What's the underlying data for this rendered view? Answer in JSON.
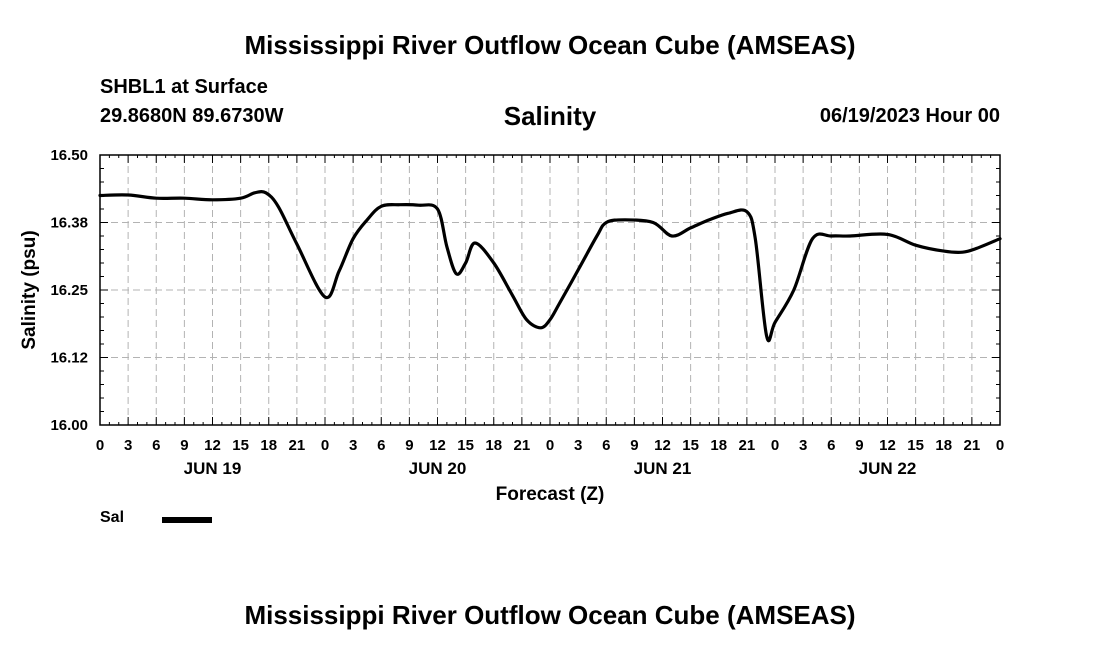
{
  "header": {
    "title": "Mississippi River Outflow Ocean Cube (AMSEAS)",
    "station": "SHBL1 at Surface",
    "coordinates": "29.8680N  89.6730W",
    "variable": "Salinity",
    "date_time": "06/19/2023 Hour 00"
  },
  "legend": {
    "label": "Sal"
  },
  "footer": {
    "title": "Mississippi River Outflow Ocean Cube (AMSEAS)"
  },
  "chart_data": {
    "type": "line",
    "title": "Salinity",
    "xlabel": "Forecast (Z)",
    "ylabel": "Salinity (psu)",
    "ylim": [
      16.0,
      16.5
    ],
    "xlim": [
      0,
      96
    ],
    "grid": true,
    "y_ticks": [
      "16.00",
      "16.12",
      "16.25",
      "16.38",
      "16.50"
    ],
    "x_tick_labels": [
      "0",
      "3",
      "6",
      "9",
      "12",
      "15",
      "18",
      "21",
      "0",
      "3",
      "6",
      "9",
      "12",
      "15",
      "18",
      "21",
      "0",
      "3",
      "6",
      "9",
      "12",
      "15",
      "18",
      "21",
      "0",
      "3",
      "6",
      "9",
      "12",
      "15",
      "18",
      "21",
      "0"
    ],
    "date_labels": [
      {
        "label": "JUN 19",
        "hour": 12
      },
      {
        "label": "JUN 20",
        "hour": 36
      },
      {
        "label": "JUN 21",
        "hour": 60
      },
      {
        "label": "JUN 22",
        "hour": 84
      }
    ],
    "series": [
      {
        "name": "Sal",
        "color": "#000000",
        "x": [
          0,
          3,
          6,
          9,
          12,
          15,
          16.5,
          17.7,
          19,
          21,
          24,
          25.5,
          27,
          28.5,
          30,
          32,
          34,
          36,
          37,
          38,
          39,
          40,
          42,
          44,
          45.5,
          47,
          48,
          49,
          51,
          53,
          54,
          56,
          59,
          61,
          63,
          65,
          67,
          69,
          69.9,
          71.1,
          72,
          74,
          76,
          78,
          80,
          84,
          87,
          90,
          92,
          93.5,
          96
        ],
        "y": [
          16.425,
          16.426,
          16.42,
          16.42,
          16.417,
          16.42,
          16.43,
          16.43,
          16.405,
          16.335,
          16.237,
          16.285,
          16.345,
          16.38,
          16.405,
          16.408,
          16.407,
          16.4,
          16.33,
          16.28,
          16.3,
          16.337,
          16.3,
          16.24,
          16.195,
          16.18,
          16.195,
          16.225,
          16.287,
          16.35,
          16.375,
          16.38,
          16.375,
          16.35,
          16.365,
          16.38,
          16.392,
          16.395,
          16.345,
          16.165,
          16.19,
          16.25,
          16.345,
          16.35,
          16.35,
          16.353,
          16.333,
          16.322,
          16.32,
          16.327,
          16.345
        ]
      }
    ]
  }
}
